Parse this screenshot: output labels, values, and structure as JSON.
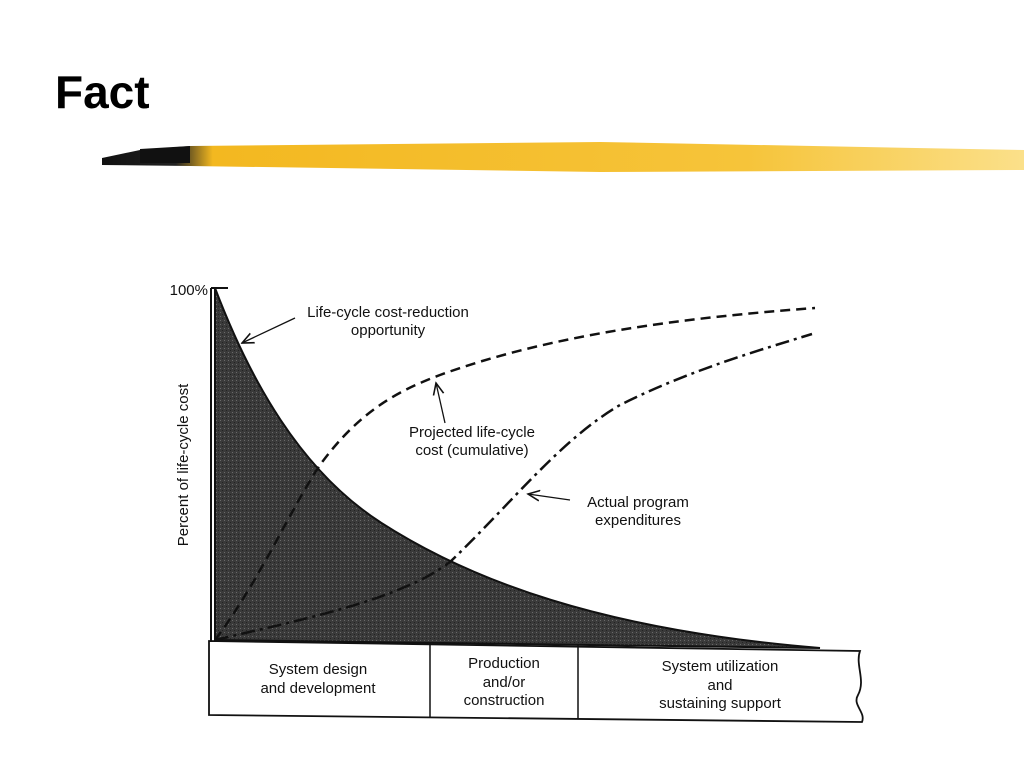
{
  "slide": {
    "title": "Fact"
  },
  "figure": {
    "y_axis_label": "Percent of life-cycle cost",
    "y_tick": "100%",
    "annotations": [
      {
        "lines": [
          "Life-cycle cost-reduction",
          "opportunity"
        ]
      },
      {
        "lines": [
          "Projected life-cycle",
          "cost (cumulative)"
        ]
      },
      {
        "lines": [
          "Actual program",
          "expenditures"
        ]
      }
    ],
    "phases": [
      {
        "lines": [
          "System design",
          "and development"
        ]
      },
      {
        "lines": [
          "Production",
          "and/or",
          "construction"
        ]
      },
      {
        "lines": [
          "System utilization",
          "and",
          "sustaining support"
        ]
      }
    ]
  }
}
